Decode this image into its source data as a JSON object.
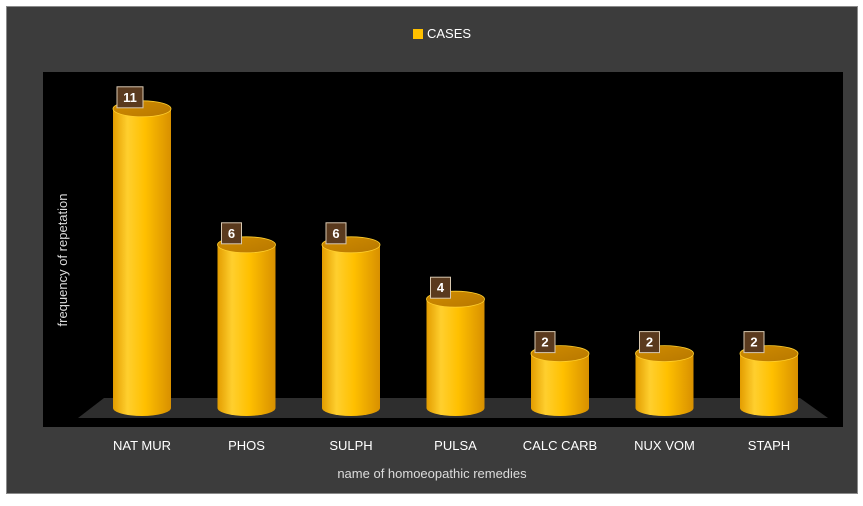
{
  "chart_data": {
    "type": "bar",
    "style": "3d-cylinder",
    "categories": [
      "NAT MUR",
      "PHOS",
      "SULPH",
      "PULSA",
      "CALC CARB",
      "NUX VOM",
      "STAPH"
    ],
    "series": [
      {
        "name": "CASES",
        "values": [
          11,
          6,
          6,
          4,
          2,
          2,
          2
        ],
        "color": "#ffc000"
      }
    ],
    "xlabel": "name of homoeopathic remedies",
    "ylabel": "frequency of repetation",
    "legend": "top-center",
    "data_labels": true,
    "grid": false,
    "colors": {
      "background": "#3c3c3c",
      "plot_area": "#000000",
      "bar": "#ffc000",
      "label_box": "#5a3a1e"
    }
  }
}
